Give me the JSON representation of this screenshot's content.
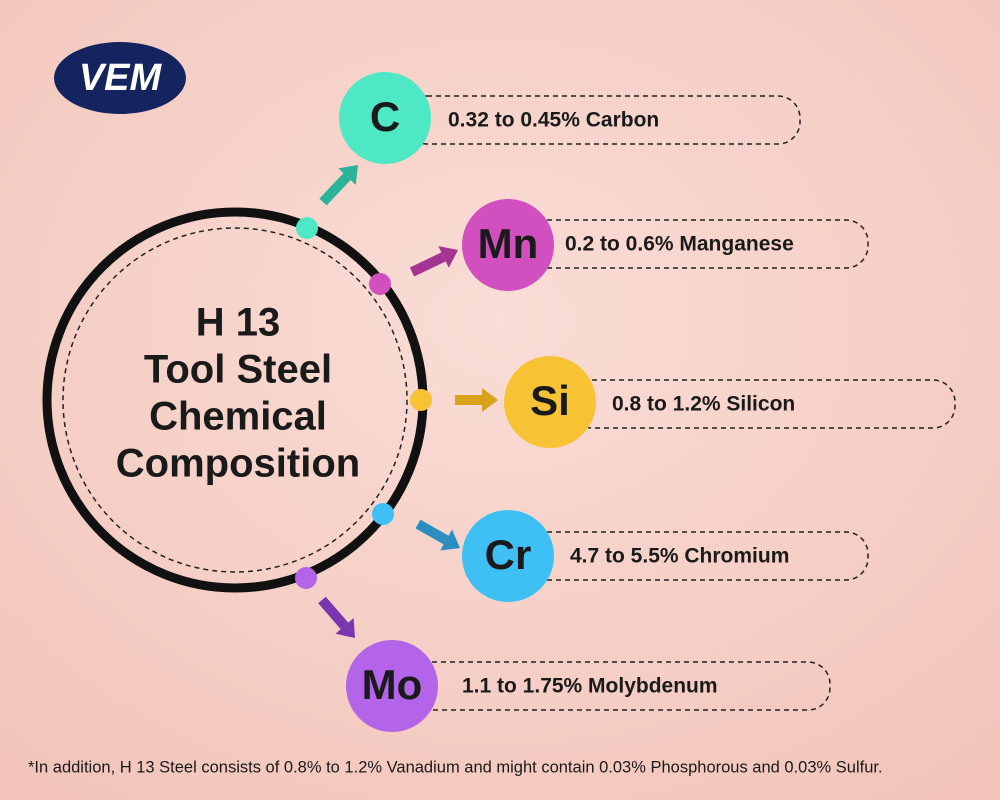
{
  "logo": "VEM",
  "title": {
    "lines": [
      "H 13",
      "Tool Steel",
      "Chemical",
      "Composition"
    ]
  },
  "elements": [
    {
      "symbol": "C",
      "label": "0.32 to 0.45% Carbon"
    },
    {
      "symbol": "Mn",
      "label": "0.2 to 0.6% Manganese"
    },
    {
      "symbol": "Si",
      "label": "0.8 to 1.2% Silicon"
    },
    {
      "symbol": "Cr",
      "label": "4.7 to 5.5% Chromium"
    },
    {
      "symbol": "Mo",
      "label": "1.1 to 1.75% Molybdenum"
    }
  ],
  "footnote": "*In addition, H 13 Steel consists of 0.8% to 1.2% Vanadium and might contain 0.03% Phosphorous and 0.03% Sulfur."
}
